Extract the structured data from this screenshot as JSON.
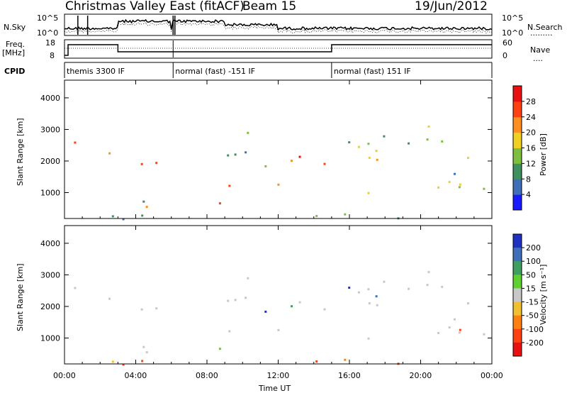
{
  "header": {
    "station": "Christmas Valley East (fitACF)",
    "beam": "Beam 15",
    "date": "19/Jun/2012"
  },
  "noise_panel": {
    "left_label": "N.Sky",
    "right_label": "N.Search",
    "ytick_top": "10^5",
    "ytick_bottom": "10^0"
  },
  "freq_panel": {
    "left_label_1": "Freq.",
    "left_label_2": "[MHz]",
    "right_label": "Nave",
    "left_ticks": [
      "18",
      "8"
    ],
    "right_ticks": [
      "60",
      "0"
    ]
  },
  "cpid": {
    "label": "CPID",
    "segments": [
      {
        "start_h": 0,
        "end_h": 6.1,
        "text": "themis 3300 IF"
      },
      {
        "start_h": 6.1,
        "end_h": 15.0,
        "text": "normal (fast) -151 IF"
      },
      {
        "start_h": 15.0,
        "end_h": 24,
        "text": "normal (fast) 151 IF"
      }
    ]
  },
  "time_axis": {
    "label": "Time UT",
    "ticks": [
      "00:00",
      "04:00",
      "08:00",
      "12:00",
      "16:00",
      "20:00",
      "00:00"
    ]
  },
  "chart_data": [
    {
      "type": "heatmap",
      "title": "Power",
      "ylabel": "Slant Range [km]",
      "xlabel": "Time UT",
      "ylim": [
        180,
        4560
      ],
      "xlim_hours": [
        0,
        24
      ],
      "yticks": [
        "1000",
        "2000",
        "3000",
        "4000"
      ],
      "colorbar": {
        "label": "Power [dB]",
        "ticks": [
          "4",
          "8",
          "12",
          "16",
          "20",
          "24",
          "28"
        ],
        "colors": [
          "#1a1aff",
          "#3f6fb8",
          "#3f8f5f",
          "#7fbf3f",
          "#f0d020",
          "#ff9020",
          "#ff4010",
          "#e81010"
        ]
      }
    },
    {
      "type": "heatmap",
      "title": "Velocity",
      "ylabel": "Slant Range [km]",
      "xlabel": "Time UT",
      "ylim": [
        180,
        4560
      ],
      "xlim_hours": [
        0,
        24
      ],
      "yticks": [
        "1000",
        "2000",
        "3000",
        "4000"
      ],
      "colorbar": {
        "label": "Velocity [m s⁻¹]",
        "ticks": [
          "200",
          "100",
          "50",
          "15",
          "-15",
          "-50",
          "-100",
          "-200"
        ],
        "colors": [
          "#2030c0",
          "#3f6fb8",
          "#3f9f5f",
          "#60d030",
          "#c8c8c8",
          "#f0c030",
          "#ff8010",
          "#ff4010",
          "#e81010"
        ]
      }
    }
  ]
}
